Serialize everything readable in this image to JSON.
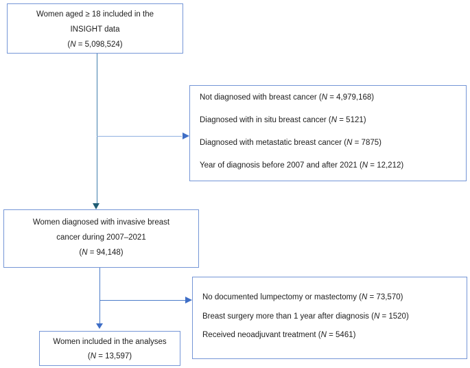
{
  "colors": {
    "background": "#ffffff",
    "text": "#1c1c1c",
    "box_border": "#7495d6",
    "v1_line": "#3f7dad",
    "v1_arrow": "#1f5d74",
    "h_line_top": "#8fb0e0",
    "connector_blue": "#4a7bc8",
    "arrow_blue": "#3f6ec6"
  },
  "flow": {
    "top_box": {
      "line1": "Women aged ≥ 18 included in the",
      "line2": "INSIGHT data",
      "n": {
        "pre": "(",
        "var": "N",
        "post": " = 5,098,524)"
      }
    },
    "exclusions_top": {
      "items": [
        {
          "pre": "Not diagnosed with breast cancer (",
          "var": "N",
          "post": " = 4,979,168)"
        },
        {
          "pre": "Diagnosed with in situ breast cancer (",
          "var": "N",
          "post": " = 5121)"
        },
        {
          "pre": "Diagnosed with metastatic breast cancer (",
          "var": "N",
          "post": " = 7875)"
        },
        {
          "pre": "Year of diagnosis before 2007 and after 2021 (",
          "var": "N",
          "post": " = 12,212)"
        }
      ]
    },
    "invasive_box": {
      "line1": "Women diagnosed with invasive breast",
      "line2": "cancer during 2007–2021",
      "n": {
        "pre": "(",
        "var": "N",
        "post": " = 94,148)"
      }
    },
    "exclusions_bottom": {
      "items": [
        {
          "pre": "No documented lumpectomy or mastectomy (",
          "var": "N",
          "post": " = 73,570)"
        },
        {
          "pre": "Breast surgery more than 1 year after diagnosis (",
          "var": "N",
          "post": " = 1520)"
        },
        {
          "pre": "Received neoadjuvant treatment (",
          "var": "N",
          "post": " = 5461)"
        }
      ]
    },
    "included_box": {
      "line1": "Women included in the analyses",
      "n": {
        "pre": "(",
        "var": "N",
        "post": " = 13,597)"
      }
    }
  }
}
